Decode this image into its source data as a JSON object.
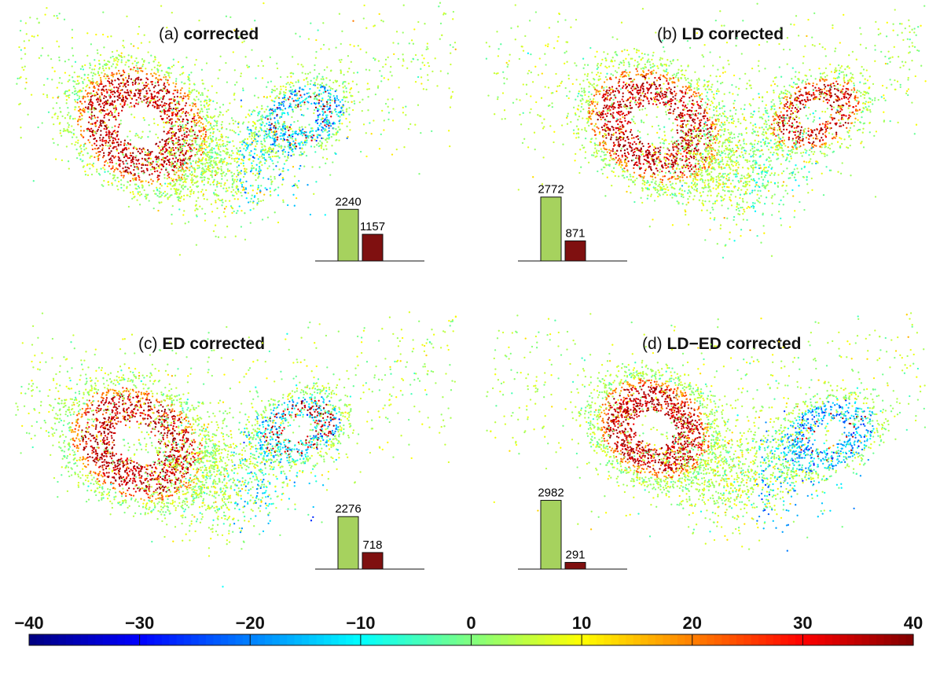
{
  "chart_data": [
    {
      "type": "scatter",
      "panel_label": "(a)",
      "title": "corrected",
      "inset_bar": {
        "type": "bar",
        "values": [
          2240,
          1157
        ],
        "value_labels": [
          "2240",
          "1157"
        ],
        "colors": [
          "#a6d25e",
          "#7f1010"
        ]
      }
    },
    {
      "type": "scatter",
      "panel_label": "(b)",
      "title": "LD corrected",
      "inset_bar": {
        "type": "bar",
        "values": [
          2772,
          871
        ],
        "value_labels": [
          "2772",
          "871"
        ],
        "colors": [
          "#a6d25e",
          "#7f1010"
        ]
      }
    },
    {
      "type": "scatter",
      "panel_label": "(c)",
      "title": "ED corrected",
      "inset_bar": {
        "type": "bar",
        "values": [
          2276,
          718
        ],
        "value_labels": [
          "2276",
          "718"
        ],
        "colors": [
          "#a6d25e",
          "#7f1010"
        ]
      }
    },
    {
      "type": "scatter",
      "panel_label": "(d)",
      "title": "LD−ED corrected",
      "inset_bar": {
        "type": "bar",
        "values": [
          2982,
          291
        ],
        "value_labels": [
          "2982",
          "291"
        ],
        "colors": [
          "#a6d25e",
          "#7f1010"
        ]
      }
    }
  ],
  "colorbar": {
    "range": [
      -40,
      40
    ],
    "ticks": [
      -40,
      -30,
      -20,
      -10,
      0,
      10,
      20,
      30,
      40
    ],
    "tick_labels": [
      "−40",
      "−30",
      "−20",
      "−10",
      "0",
      "10",
      "20",
      "30",
      "40"
    ],
    "colormap": "jet"
  }
}
